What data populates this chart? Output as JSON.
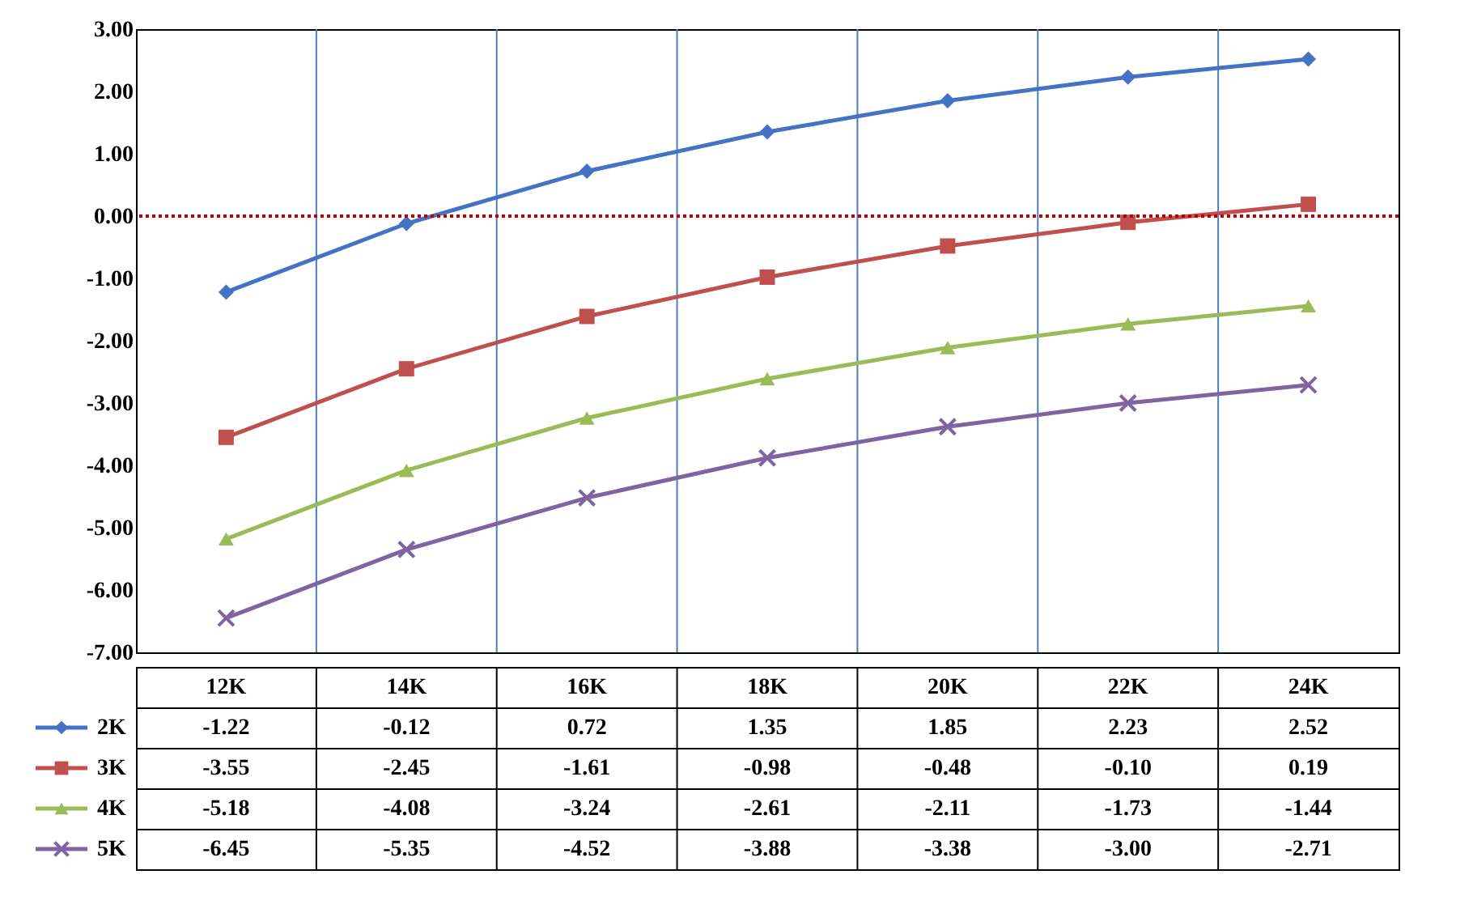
{
  "chart_data": {
    "type": "line",
    "categories": [
      "12K",
      "14K",
      "16K",
      "18K",
      "20K",
      "22K",
      "24K"
    ],
    "series": [
      {
        "name": "2K",
        "color": "#4472c4",
        "marker": "diamond",
        "values": [
          -1.22,
          -0.12,
          0.72,
          1.35,
          1.85,
          2.23,
          2.52
        ],
        "value_labels": [
          "-1.22",
          "-0.12",
          "0.72",
          "1.35",
          "1.85",
          "2.23",
          "2.52"
        ]
      },
      {
        "name": "3K",
        "color": "#c0504d",
        "marker": "square",
        "values": [
          -3.55,
          -2.45,
          -1.61,
          -0.98,
          -0.48,
          -0.1,
          0.19
        ],
        "value_labels": [
          "-3.55",
          "-2.45",
          "-1.61",
          "-0.98",
          "-0.48",
          "-0.10",
          "0.19"
        ]
      },
      {
        "name": "4K",
        "color": "#9bbb59",
        "marker": "triangle",
        "values": [
          -5.18,
          -4.08,
          -3.24,
          -2.61,
          -2.11,
          -1.73,
          -1.44
        ],
        "value_labels": [
          "-5.18",
          "-4.08",
          "-3.24",
          "-2.61",
          "-2.11",
          "-1.73",
          "-1.44"
        ]
      },
      {
        "name": "5K",
        "color": "#8064a2",
        "marker": "cross",
        "values": [
          -6.45,
          -5.35,
          -4.52,
          -3.88,
          -3.38,
          -3,
          -2.71
        ],
        "value_labels": [
          "-6.45",
          "-5.35",
          "-4.52",
          "-3.88",
          "-3.38",
          "-3.00",
          "-2.71"
        ]
      }
    ],
    "ylim": [
      -7,
      3
    ],
    "yticks": [
      {
        "value": -7,
        "label": "-7.00"
      },
      {
        "value": -6,
        "label": "-6.00"
      },
      {
        "value": -5,
        "label": "-5.00"
      },
      {
        "value": -4,
        "label": "-4.00"
      },
      {
        "value": -3,
        "label": "-3.00"
      },
      {
        "value": -2,
        "label": "-2.00"
      },
      {
        "value": -1,
        "label": "-1.00"
      },
      {
        "value": 0,
        "label": "0.00"
      },
      {
        "value": 1,
        "label": "1.00"
      },
      {
        "value": 2,
        "label": "2.00"
      },
      {
        "value": 3,
        "label": "3.00"
      }
    ],
    "ref_lines": [
      {
        "axis": "y",
        "value": 0,
        "color": "#c00000",
        "line_style": "dotted"
      }
    ],
    "grid": "x",
    "legend": "bottom left",
    "line_style": "solid"
  }
}
